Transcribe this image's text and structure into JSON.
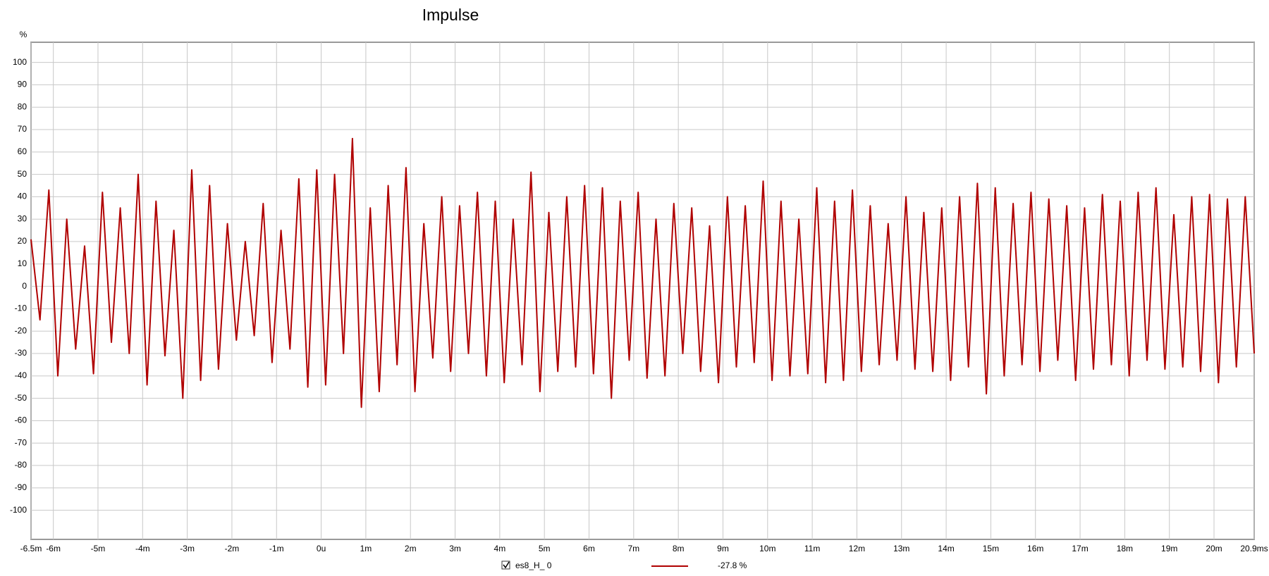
{
  "chart_data": {
    "type": "line",
    "title": "Impulse",
    "y_label": "%",
    "x": [
      -6.5,
      -6.3,
      -6.1,
      -5.9,
      -5.7,
      -5.5,
      -5.3,
      -5.1,
      -4.9,
      -4.7,
      -4.5,
      -4.3,
      -4.1,
      -3.9,
      -3.7,
      -3.5,
      -3.3,
      -3.1,
      -2.9,
      -2.7,
      -2.5,
      -2.3,
      -2.1,
      -1.9,
      -1.7,
      -1.5,
      -1.3,
      -1.1,
      -0.9,
      -0.7,
      -0.5,
      -0.3,
      -0.1,
      0.1,
      0.3,
      0.5,
      0.7,
      0.9,
      1.1,
      1.3,
      1.5,
      1.7,
      1.9,
      2.1,
      2.3,
      2.5,
      2.7,
      2.9,
      3.1,
      3.3,
      3.5,
      3.7,
      3.9,
      4.1,
      4.3,
      4.5,
      4.7,
      4.9,
      5.1,
      5.3,
      5.5,
      5.7,
      5.9,
      6.1,
      6.3,
      6.5,
      6.7,
      6.9,
      7.1,
      7.3,
      7.5,
      7.7,
      7.9,
      8.1,
      8.3,
      8.5,
      8.7,
      8.9,
      9.1,
      9.3,
      9.5,
      9.7,
      9.9,
      10.1,
      10.3,
      10.5,
      10.7,
      10.9,
      11.1,
      11.3,
      11.5,
      11.7,
      11.9,
      12.1,
      12.3,
      12.5,
      12.7,
      12.9,
      13.1,
      13.3,
      13.5,
      13.7,
      13.9,
      14.1,
      14.3,
      14.5,
      14.7,
      14.9,
      15.1,
      15.3,
      15.5,
      15.7,
      15.9,
      16.1,
      16.3,
      16.5,
      16.7,
      16.9,
      17.1,
      17.3,
      17.5,
      17.7,
      17.9,
      18.1,
      18.3,
      18.5,
      18.7,
      18.9,
      19.1,
      19.3,
      19.5,
      19.7,
      19.9,
      20.1,
      20.3,
      20.5,
      20.7,
      20.9
    ],
    "series": [
      {
        "name": "es8_H_ 0",
        "color": "#b00000",
        "legend_value": "-27.8 %",
        "values": [
          21,
          -15,
          43,
          -40,
          30,
          -28,
          18,
          -39,
          42,
          -25,
          35,
          -30,
          50,
          -44,
          38,
          -31,
          25,
          -50,
          52,
          -42,
          45,
          -37,
          28,
          -24,
          20,
          -22,
          37,
          -34,
          25,
          -28,
          48,
          -45,
          52,
          -44,
          50,
          -30,
          66,
          -54,
          35,
          -47,
          45,
          -35,
          53,
          -47,
          28,
          -32,
          40,
          -38,
          36,
          -30,
          42,
          -40,
          38,
          -43,
          30,
          -35,
          51,
          -47,
          33,
          -38,
          40,
          -36,
          45,
          -39,
          44,
          -50,
          38,
          -33,
          42,
          -41,
          30,
          -40,
          37,
          -30,
          35,
          -38,
          27,
          -43,
          40,
          -36,
          36,
          -34,
          47,
          -42,
          38,
          -40,
          30,
          -39,
          44,
          -43,
          38,
          -42,
          43,
          -38,
          36,
          -35,
          28,
          -33,
          40,
          -37,
          33,
          -38,
          35,
          -42,
          40,
          -36,
          46,
          -48,
          44,
          -40,
          37,
          -35,
          42,
          -38,
          39,
          -33,
          36,
          -42,
          35,
          -37,
          41,
          -35,
          38,
          -40,
          42,
          -33,
          44,
          -37,
          32,
          -36,
          40,
          -38,
          41,
          -43,
          39,
          -36,
          40,
          -30
        ]
      }
    ],
    "xlim": [
      -6.5,
      20.9
    ],
    "ylim": [
      -113,
      109
    ],
    "xticks": [
      {
        "value": -6.5,
        "label": "-6.5m"
      },
      {
        "value": -6,
        "label": "-6m"
      },
      {
        "value": -5,
        "label": "-5m"
      },
      {
        "value": -4,
        "label": "-4m"
      },
      {
        "value": -3,
        "label": "-3m"
      },
      {
        "value": -2,
        "label": "-2m"
      },
      {
        "value": -1,
        "label": "-1m"
      },
      {
        "value": 0,
        "label": "0u"
      },
      {
        "value": 1,
        "label": "1m"
      },
      {
        "value": 2,
        "label": "2m"
      },
      {
        "value": 3,
        "label": "3m"
      },
      {
        "value": 4,
        "label": "4m"
      },
      {
        "value": 5,
        "label": "5m"
      },
      {
        "value": 6,
        "label": "6m"
      },
      {
        "value": 7,
        "label": "7m"
      },
      {
        "value": 8,
        "label": "8m"
      },
      {
        "value": 9,
        "label": "9m"
      },
      {
        "value": 10,
        "label": "10m"
      },
      {
        "value": 11,
        "label": "11m"
      },
      {
        "value": 12,
        "label": "12m"
      },
      {
        "value": 13,
        "label": "13m"
      },
      {
        "value": 14,
        "label": "14m"
      },
      {
        "value": 15,
        "label": "15m"
      },
      {
        "value": 16,
        "label": "16m"
      },
      {
        "value": 17,
        "label": "17m"
      },
      {
        "value": 18,
        "label": "18m"
      },
      {
        "value": 19,
        "label": "19m"
      },
      {
        "value": 20,
        "label": "20m"
      },
      {
        "value": 20.9,
        "label": "20.9ms"
      }
    ],
    "yticks": [
      100,
      90,
      80,
      70,
      60,
      50,
      40,
      30,
      20,
      10,
      0,
      -10,
      -20,
      -30,
      -40,
      -50,
      -60,
      -70,
      -80,
      -90,
      -100
    ],
    "grid": true
  }
}
